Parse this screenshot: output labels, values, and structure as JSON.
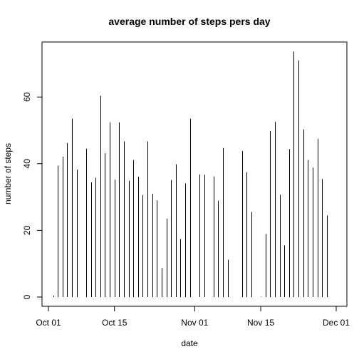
{
  "chart_data": {
    "type": "bar",
    "style": "histogram-spikes",
    "title": "average number of steps pers day",
    "xlabel": "date",
    "ylabel": "number of steps",
    "xlim": [
      "2012-10-01",
      "2012-12-01"
    ],
    "ylim": [
      0,
      74
    ],
    "x_ticks": [
      {
        "date": "2012-10-01",
        "label": "Oct 01"
      },
      {
        "date": "2012-10-15",
        "label": "Oct 15"
      },
      {
        "date": "2012-11-01",
        "label": "Nov 01"
      },
      {
        "date": "2012-11-15",
        "label": "Nov 15"
      },
      {
        "date": "2012-12-01",
        "label": "Dec 01"
      }
    ],
    "y_ticks": [
      0,
      20,
      40,
      60
    ],
    "grid": false,
    "bar_color": "#000000",
    "x": [
      "2012-10-02",
      "2012-10-03",
      "2012-10-04",
      "2012-10-05",
      "2012-10-06",
      "2012-10-07",
      "2012-10-09",
      "2012-10-10",
      "2012-10-11",
      "2012-10-12",
      "2012-10-13",
      "2012-10-14",
      "2012-10-15",
      "2012-10-16",
      "2012-10-17",
      "2012-10-18",
      "2012-10-19",
      "2012-10-20",
      "2012-10-21",
      "2012-10-22",
      "2012-10-23",
      "2012-10-24",
      "2012-10-25",
      "2012-10-26",
      "2012-10-27",
      "2012-10-28",
      "2012-10-29",
      "2012-10-30",
      "2012-10-31",
      "2012-11-02",
      "2012-11-03",
      "2012-11-05",
      "2012-11-06",
      "2012-11-07",
      "2012-11-08",
      "2012-11-11",
      "2012-11-12",
      "2012-11-13",
      "2012-11-15",
      "2012-11-16",
      "2012-11-17",
      "2012-11-18",
      "2012-11-19",
      "2012-11-20",
      "2012-11-21",
      "2012-11-22",
      "2012-11-23",
      "2012-11-24",
      "2012-11-25",
      "2012-11-26",
      "2012-11-27",
      "2012-11-28",
      "2012-11-29"
    ],
    "values": [
      0.4,
      39.4,
      42.1,
      46.2,
      53.5,
      38.2,
      44.5,
      34.4,
      35.8,
      60.4,
      43.1,
      52.4,
      35.2,
      52.4,
      46.7,
      34.9,
      41.1,
      36.1,
      30.6,
      46.7,
      31.0,
      29.0,
      8.7,
      23.5,
      35.1,
      39.8,
      17.4,
      34.1,
      53.5,
      36.8,
      36.7,
      36.2,
      28.9,
      44.7,
      11.2,
      43.8,
      37.4,
      25.5,
      0.1,
      18.9,
      49.8,
      52.5,
      30.7,
      15.5,
      44.4,
      73.6,
      71.0,
      50.3,
      41.1,
      38.8,
      47.4,
      35.4,
      24.5
    ]
  }
}
